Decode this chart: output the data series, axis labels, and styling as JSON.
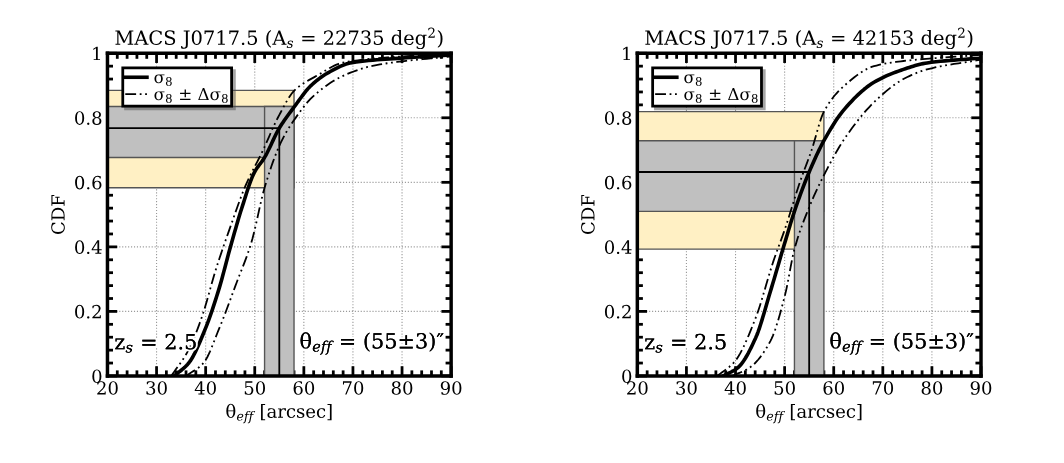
{
  "chart_data": [
    {
      "type": "line",
      "title": "MACS J0717.5 (A$_{s}$ = 22735 deg$^{2}$)",
      "xlabel": "θ$_{eff}$ [arcsec]",
      "ylabel": "CDF",
      "xlim": [
        20,
        90
      ],
      "ylim": [
        0,
        1
      ],
      "xticks": [
        20,
        30,
        40,
        50,
        60,
        70,
        80,
        90
      ],
      "yticks": [
        0,
        {
          "value": 0.2,
          "label": "0.2"
        },
        {
          "value": 0.4,
          "label": "0.4"
        },
        {
          "value": 0.6,
          "label": "0.6"
        },
        {
          "value": 0.8,
          "label": "0.8"
        },
        1
      ],
      "grid": true,
      "legend": "top left",
      "marker": "none",
      "annotations": [
        "z$_{s}$ = 2.5",
        "θ$_{eff}$ = (55±3)″"
      ],
      "bands": [
        {
          "axis": "y",
          "from": 0.583,
          "to": 0.885,
          "color": "#fff0c4"
        },
        {
          "axis": "y",
          "from": 0.677,
          "to": 0.835,
          "color": "#c0c0c0"
        },
        {
          "axis": "x",
          "from": 52,
          "to": 58,
          "color": "#c0c0c0"
        }
      ],
      "ref_lines": [
        {
          "axis": "x",
          "value": 55,
          "color": "#000000"
        },
        {
          "axis": "y",
          "value": 0.768,
          "color": "#000000"
        }
      ],
      "series": [
        {
          "name": "σ$_{8}$",
          "color": "#000000",
          "line_style": "solid",
          "x": [
            33.6,
            36.6,
            39.9,
            42.7,
            45.1,
            47.5,
            49.9,
            52.0,
            55.0,
            58.1,
            61.4,
            65.0,
            69.8,
            80,
            90
          ],
          "values": [
            0,
            0.041,
            0.145,
            0.269,
            0.403,
            0.527,
            0.63,
            0.677,
            0.768,
            0.835,
            0.899,
            0.94,
            0.971,
            0.985,
            0.995
          ]
        },
        {
          "name": "σ$_{8}$ ± Δσ$_{8}$",
          "color": "#000000",
          "line_style": "dashed",
          "x": [
            33.0,
            36.6,
            39.3,
            42.1,
            45.1,
            48.1,
            51.7,
            54.7,
            58.1,
            62.6,
            68.0,
            80,
            90
          ],
          "values": [
            0,
            0.083,
            0.186,
            0.331,
            0.465,
            0.589,
            0.7,
            0.8,
            0.885,
            0.93,
            0.971,
            0.99,
            0.998
          ]
        },
        {
          "color": "#000000",
          "line_style": "dashed",
          "x": [
            36.0,
            39.6,
            42.7,
            46.3,
            49.3,
            52.0,
            55.3,
            58.1,
            62.0,
            68.0,
            74.0,
            80,
            90
          ],
          "values": [
            0,
            0.041,
            0.145,
            0.289,
            0.413,
            0.583,
            0.723,
            0.795,
            0.868,
            0.93,
            0.961,
            0.975,
            0.99
          ]
        }
      ]
    },
    {
      "type": "line",
      "title": "MACS J0717.5 (A$_{s}$ = 42153 deg$^{2}$)",
      "xlabel": "θ$_{eff}$ [arcsec]",
      "ylabel": "CDF",
      "xlim": [
        20,
        90
      ],
      "ylim": [
        0,
        1
      ],
      "xticks": [
        20,
        30,
        40,
        50,
        60,
        70,
        80,
        90
      ],
      "yticks": [
        0,
        {
          "value": 0.2,
          "label": "0.2"
        },
        {
          "value": 0.4,
          "label": "0.4"
        },
        {
          "value": 0.6,
          "label": "0.6"
        },
        {
          "value": 0.8,
          "label": "0.8"
        },
        1
      ],
      "grid": true,
      "legend": "top left",
      "marker": "none",
      "annotations": [
        "z$_{s}$ = 2.5",
        "θ$_{eff}$ = (55±3)″"
      ],
      "bands": [
        {
          "axis": "y",
          "from": 0.393,
          "to": 0.819,
          "color": "#fff0c4"
        },
        {
          "axis": "y",
          "from": 0.51,
          "to": 0.729,
          "color": "#c0c0c0"
        },
        {
          "axis": "x",
          "from": 52,
          "to": 58,
          "color": "#c0c0c0"
        }
      ],
      "ref_lines": [
        {
          "axis": "x",
          "value": 55,
          "color": "#000000"
        },
        {
          "axis": "y",
          "value": 0.632,
          "color": "#000000"
        }
      ],
      "series": [
        {
          "name": "σ$_{8}$",
          "color": "#000000",
          "line_style": "solid",
          "x": [
            37.5,
            40.5,
            44.1,
            47.1,
            50.1,
            52.0,
            55.0,
            58.0,
            62.2,
            68.2,
            74.2,
            79.0,
            90
          ],
          "values": [
            0,
            0.026,
            0.118,
            0.262,
            0.416,
            0.51,
            0.632,
            0.729,
            0.827,
            0.91,
            0.95,
            0.97,
            0.985
          ]
        },
        {
          "name": "σ$_{8}$ ± Δσ$_{8}$",
          "color": "#000000",
          "line_style": "dashed",
          "x": [
            36.3,
            39.9,
            44.1,
            47.7,
            50.1,
            53.1,
            55.5,
            58.0,
            62.2,
            68.2,
            74.2,
            90
          ],
          "values": [
            0,
            0.046,
            0.18,
            0.355,
            0.457,
            0.6,
            0.7,
            0.819,
            0.9,
            0.96,
            0.976,
            0.995
          ]
        },
        {
          "color": "#000000",
          "line_style": "dashed",
          "x": [
            39.3,
            42.9,
            47.1,
            50.1,
            52.0,
            54.9,
            58.0,
            62.2,
            68.2,
            74.2,
            79.0,
            90
          ],
          "values": [
            0,
            0.026,
            0.108,
            0.252,
            0.393,
            0.519,
            0.622,
            0.735,
            0.848,
            0.92,
            0.95,
            0.98
          ]
        }
      ]
    }
  ]
}
